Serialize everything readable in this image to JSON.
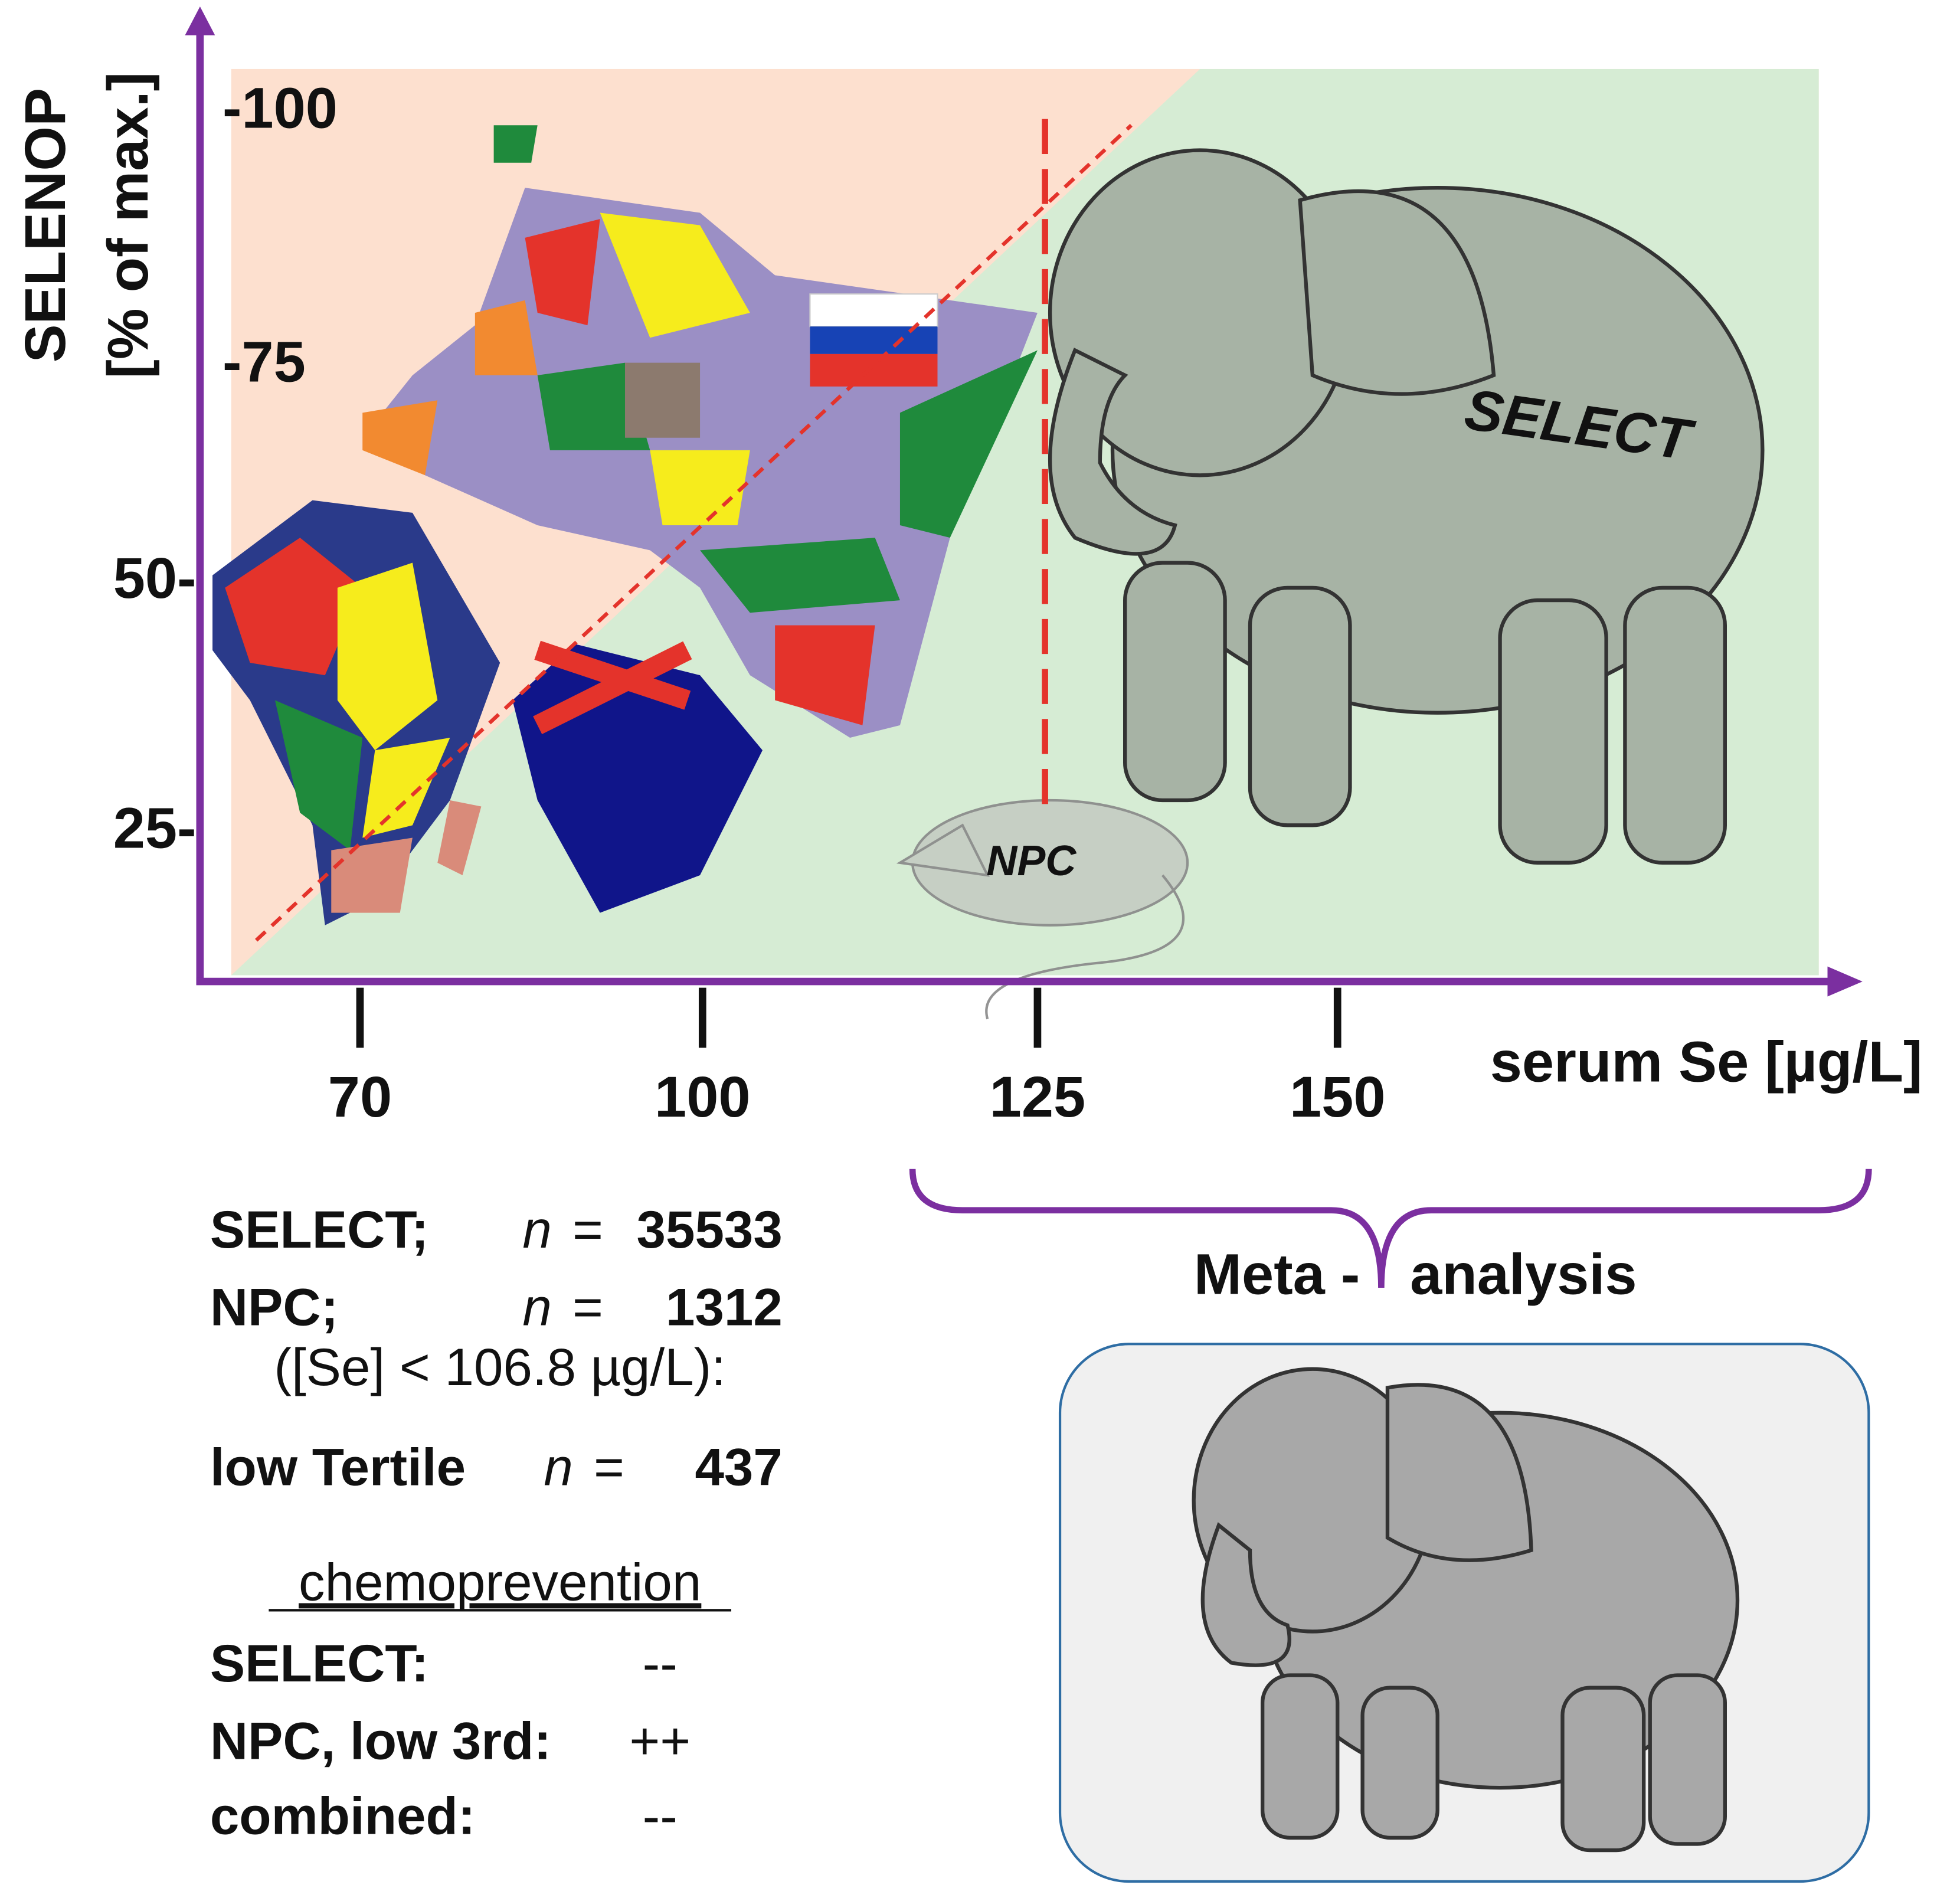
{
  "y_axis": {
    "label_lines": [
      "SELENOP",
      "[% of max.]"
    ],
    "ticks": [
      "-100",
      "-75",
      "50-",
      "25-"
    ]
  },
  "x_axis": {
    "label": "serum Se [µg/L]",
    "ticks": [
      "70",
      "100",
      "125",
      "150"
    ]
  },
  "figure_labels": {
    "mouse": "NPC",
    "elephant": "SELECT"
  },
  "meta_analysis": {
    "left": "Meta -",
    "right": "analysis"
  },
  "studies": {
    "rows": [
      {
        "label": "SELECT;",
        "n": "n",
        "eq": "=",
        "value": 35533
      },
      {
        "label": "NPC;",
        "n": "n",
        "eq": "=",
        "value": 1312
      },
      {
        "label": "low Tertile",
        "n": "n",
        "eq": "=",
        "value": 437
      }
    ],
    "note": "([Se] < 106.8 µg/L):"
  },
  "chemoprevention": {
    "heading": "chemoprevention",
    "rows": [
      {
        "label": "SELECT:",
        "result": "--"
      },
      {
        "label": "NPC, low 3rd:",
        "result": "++"
      },
      {
        "label": "combined:",
        "result": "--"
      }
    ]
  }
}
